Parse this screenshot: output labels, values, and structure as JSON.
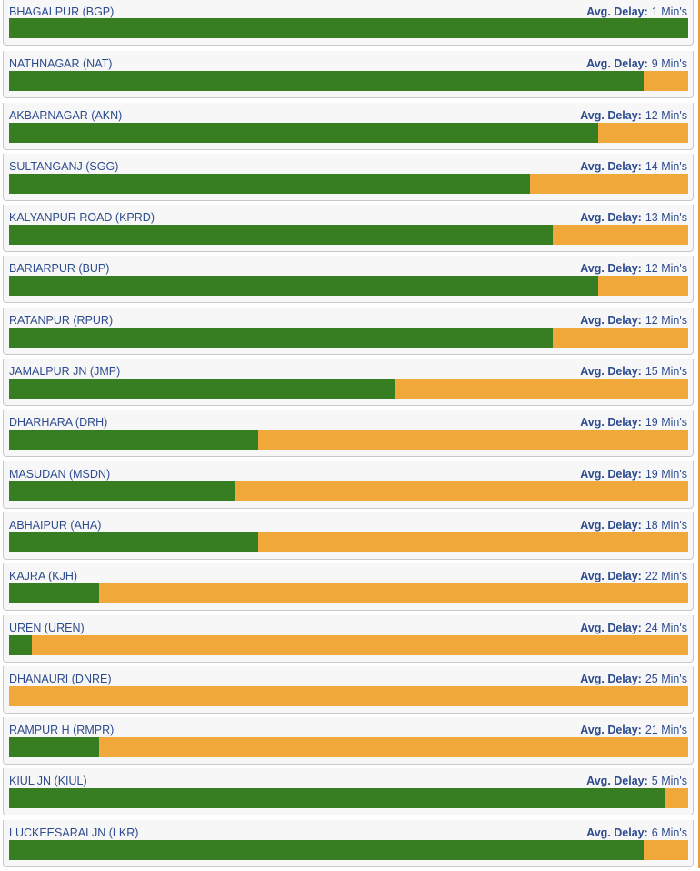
{
  "delay_label": "Avg. Delay:",
  "colors": {
    "on_time": "#377d22",
    "delayed": "#f0a83a",
    "text": "#2d4b8f"
  },
  "stations": [
    {
      "name": "BHAGALPUR (BGP)",
      "delay": "1 Min's",
      "on_time_fraction": 1.0
    },
    {
      "name": "NATHNAGAR (NAT)",
      "delay": "9 Min's",
      "on_time_fraction": 0.934
    },
    {
      "name": "AKBARNAGAR (AKN)",
      "delay": "12 Min's",
      "on_time_fraction": 0.867
    },
    {
      "name": "SULTANGANJ (SGG)",
      "delay": "14 Min's",
      "on_time_fraction": 0.767
    },
    {
      "name": "KALYANPUR ROAD (KPRD)",
      "delay": "13 Min's",
      "on_time_fraction": 0.8
    },
    {
      "name": "BARIARPUR (BUP)",
      "delay": "12 Min's",
      "on_time_fraction": 0.867
    },
    {
      "name": "RATANPUR (RPUR)",
      "delay": "12 Min's",
      "on_time_fraction": 0.8
    },
    {
      "name": "JAMALPUR JN (JMP)",
      "delay": "15 Min's",
      "on_time_fraction": 0.567
    },
    {
      "name": "DHARHARA (DRH)",
      "delay": "19 Min's",
      "on_time_fraction": 0.367
    },
    {
      "name": "MASUDAN (MSDN)",
      "delay": "19 Min's",
      "on_time_fraction": 0.334
    },
    {
      "name": "ABHAIPUR (AHA)",
      "delay": "18 Min's",
      "on_time_fraction": 0.367
    },
    {
      "name": "KAJRA (KJH)",
      "delay": "22 Min's",
      "on_time_fraction": 0.133
    },
    {
      "name": "UREN (UREN)",
      "delay": "24 Min's",
      "on_time_fraction": 0.033
    },
    {
      "name": "DHANAURI (DNRE)",
      "delay": "25 Min's",
      "on_time_fraction": 0.0
    },
    {
      "name": "RAMPUR H (RMPR)",
      "delay": "21 Min's",
      "on_time_fraction": 0.133
    },
    {
      "name": "KIUL JN (KIUL)",
      "delay": "5 Min's",
      "on_time_fraction": 0.967
    },
    {
      "name": "LUCKEESARAI JN (LKR)",
      "delay": "6 Min's",
      "on_time_fraction": 0.934
    }
  ]
}
